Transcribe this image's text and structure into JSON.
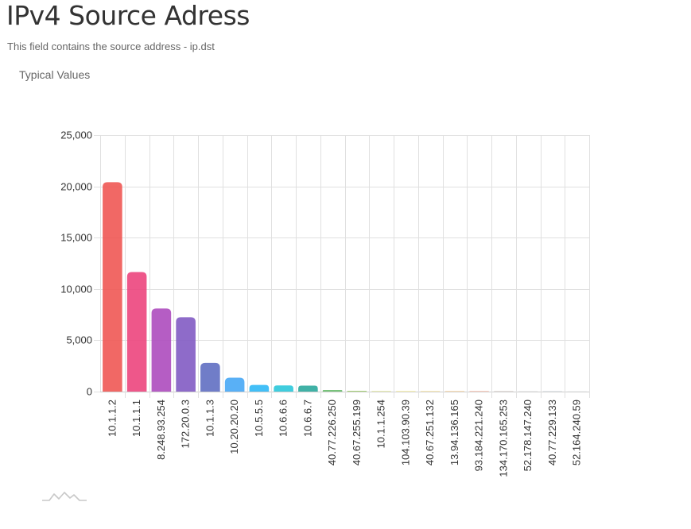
{
  "page": {
    "title": "IPv4 Source Adress",
    "subtitle": "This field contains the source address - ip.dst",
    "section_label": "Typical Values"
  },
  "icons": {
    "logo": "mountain-logo-icon"
  },
  "chart_data": {
    "type": "bar",
    "title": "",
    "xlabel": "",
    "ylabel": "",
    "ylim": [
      0,
      25000
    ],
    "yticks": [
      0,
      5000,
      10000,
      15000,
      20000,
      25000
    ],
    "ytick_labels": [
      "0",
      "5,000",
      "10,000",
      "15,000",
      "20,000",
      "25,000"
    ],
    "grid": true,
    "legend": "none",
    "categories": [
      "10.1.1.2",
      "10.1.1.1",
      "8.248.93.254",
      "172.20.0.3",
      "10.1.1.3",
      "10.20.20.20",
      "10.5.5.5",
      "10.6.6.6",
      "10.6.6.7",
      "40.77.226.250",
      "40.67.255.199",
      "10.1.1.254",
      "104.103.90.39",
      "40.67.251.132",
      "13.94.136.165",
      "93.184.221.240",
      "134.170.165.253",
      "52.178.147.240",
      "40.77.229.133",
      "52.164.240.59"
    ],
    "values": [
      20400,
      11650,
      8100,
      7250,
      2800,
      1350,
      650,
      600,
      580,
      150,
      80,
      40,
      35,
      30,
      28,
      25,
      20,
      18,
      15,
      12
    ],
    "colors": [
      "#ef5350",
      "#ec407a",
      "#ab47bc",
      "#7e57c2",
      "#5c6bc0",
      "#42a5f5",
      "#29b6f6",
      "#26c6da",
      "#26a69a",
      "#66bb6a",
      "#9ccc65",
      "#d4e157",
      "#ffee58",
      "#ffca28",
      "#ffa726",
      "#ff7043",
      "#8d6e63",
      "#bdbdbd",
      "#90a4ae",
      "#b0bec5"
    ]
  }
}
